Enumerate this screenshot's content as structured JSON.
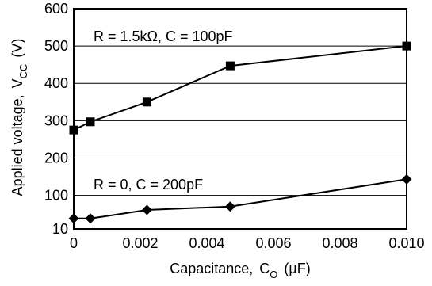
{
  "chart_data": {
    "type": "line",
    "title": "",
    "xlabel": {
      "main": "Capacitance,",
      "symbol": "C",
      "sub": "O",
      "unit": "(µF)"
    },
    "ylabel": {
      "main": "Applied voltage,",
      "symbol": "V",
      "sub": "CC",
      "unit": "(V)"
    },
    "xlim": [
      0,
      0.01
    ],
    "ylim": [
      10,
      600
    ],
    "x_ticks": [
      {
        "value": 0,
        "label": "0"
      },
      {
        "value": 0.002,
        "label": "0.002"
      },
      {
        "value": 0.004,
        "label": "0.004"
      },
      {
        "value": 0.006,
        "label": "0.006"
      },
      {
        "value": 0.008,
        "label": "0.008"
      },
      {
        "value": 0.01,
        "label": "0.010"
      }
    ],
    "y_ticks": [
      {
        "value": 10,
        "label": "10"
      },
      {
        "value": 100,
        "label": "100"
      },
      {
        "value": 200,
        "label": "200"
      },
      {
        "value": 300,
        "label": "300"
      },
      {
        "value": 400,
        "label": "400"
      },
      {
        "value": 500,
        "label": "500"
      },
      {
        "value": 600,
        "label": "600"
      }
    ],
    "grid": "horizontal",
    "series": [
      {
        "name": "R = 1.5kΩ, C = 100pF",
        "marker": "square",
        "x": [
          0,
          0.0005,
          0.0022,
          0.0047,
          0.01
        ],
        "y": [
          275,
          297,
          350,
          447,
          500
        ]
      },
      {
        "name": "R = 0, C = 200pF",
        "marker": "diamond",
        "x": [
          0,
          0.0005,
          0.0022,
          0.0047,
          0.01
        ],
        "y": [
          38,
          38,
          61,
          70,
          143
        ]
      }
    ]
  }
}
